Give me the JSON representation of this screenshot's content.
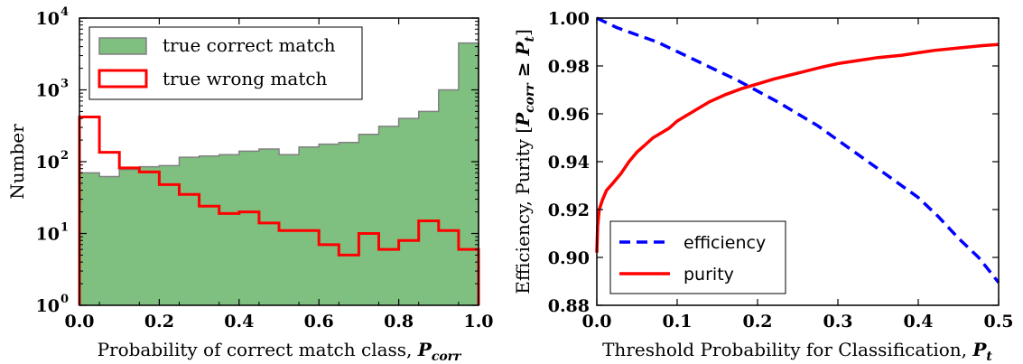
{
  "chart_data": [
    {
      "type": "bar",
      "subtype": "histogram-step",
      "xlabel_prefix": "Probability of correct match class, ",
      "xlabel_var": "P",
      "xlabel_sub": "corr",
      "ylabel": "Number",
      "xlim": [
        0.0,
        1.0
      ],
      "ylim": [
        1,
        10000
      ],
      "yscale": "log",
      "xticks": [
        "0.0",
        "0.2",
        "0.4",
        "0.6",
        "0.8",
        "1.0"
      ],
      "yticks": [
        {
          "base": "10",
          "exp": "0"
        },
        {
          "base": "10",
          "exp": "1"
        },
        {
          "base": "10",
          "exp": "2"
        },
        {
          "base": "10",
          "exp": "3"
        },
        {
          "base": "10",
          "exp": "4"
        }
      ],
      "legend_position": "top-left",
      "bin_edges": [
        0.0,
        0.05,
        0.1,
        0.15,
        0.2,
        0.25,
        0.3,
        0.35,
        0.4,
        0.45,
        0.5,
        0.55,
        0.6,
        0.65,
        0.7,
        0.75,
        0.8,
        0.85,
        0.9,
        0.95,
        1.0
      ],
      "series": [
        {
          "name": "true correct match",
          "style": "filled",
          "color": "#7fbf7f",
          "edge_color": "#808080",
          "values": [
            70,
            62,
            78,
            85,
            88,
            115,
            120,
            125,
            140,
            150,
            125,
            160,
            175,
            185,
            240,
            310,
            400,
            500,
            1000,
            4500
          ]
        },
        {
          "name": "true wrong match",
          "style": "step",
          "color": "#ff0000",
          "values": [
            420,
            135,
            82,
            72,
            48,
            35,
            24,
            19,
            20,
            14,
            11,
            11,
            7,
            5,
            10,
            6,
            8,
            15,
            11,
            6
          ]
        }
      ]
    },
    {
      "type": "line",
      "xlabel_prefix": "Threshold Probability for Classification, ",
      "xlabel_var": "P",
      "xlabel_sub": "t",
      "ylabel_prefix": "Efficiency, Purity [",
      "ylabel_var": "P",
      "ylabel_sub": "corr",
      "ylabel_geq": " ≥ ",
      "ylabel_var2": "P",
      "ylabel_sub2": "t",
      "ylabel_suffix": "]",
      "xlim": [
        0.0,
        0.5
      ],
      "ylim": [
        0.88,
        1.0
      ],
      "xticks": [
        "0.0",
        "0.1",
        "0.2",
        "0.3",
        "0.4",
        "0.5"
      ],
      "yticks": [
        "0.88",
        "0.90",
        "0.92",
        "0.94",
        "0.96",
        "0.98",
        "1.00"
      ],
      "legend_position": "bottom-left",
      "series": [
        {
          "name": "efficiency",
          "color": "#0000ff",
          "dash": "dashed",
          "x": [
            0.0,
            0.025,
            0.05,
            0.075,
            0.1,
            0.125,
            0.15,
            0.175,
            0.2,
            0.225,
            0.25,
            0.275,
            0.3,
            0.325,
            0.35,
            0.375,
            0.4,
            0.425,
            0.45,
            0.475,
            0.5
          ],
          "y": [
            1.0,
            0.996,
            0.993,
            0.99,
            0.986,
            0.982,
            0.978,
            0.974,
            0.9695,
            0.965,
            0.96,
            0.955,
            0.949,
            0.943,
            0.937,
            0.931,
            0.925,
            0.917,
            0.908,
            0.9,
            0.8895
          ]
        },
        {
          "name": "purity",
          "color": "#ff0000",
          "dash": "solid",
          "x": [
            0.0,
            0.001,
            0.003,
            0.007,
            0.012,
            0.02,
            0.03,
            0.04,
            0.05,
            0.06,
            0.07,
            0.08,
            0.09,
            0.1,
            0.12,
            0.14,
            0.16,
            0.18,
            0.2,
            0.22,
            0.25,
            0.28,
            0.3,
            0.33,
            0.35,
            0.38,
            0.4,
            0.42,
            0.45,
            0.48,
            0.5
          ],
          "y": [
            0.902,
            0.913,
            0.92,
            0.924,
            0.928,
            0.931,
            0.935,
            0.94,
            0.944,
            0.947,
            0.95,
            0.952,
            0.954,
            0.957,
            0.961,
            0.965,
            0.968,
            0.9705,
            0.9725,
            0.9745,
            0.977,
            0.9795,
            0.981,
            0.9825,
            0.9835,
            0.9845,
            0.9855,
            0.9865,
            0.9875,
            0.9885,
            0.989
          ]
        }
      ]
    }
  ]
}
